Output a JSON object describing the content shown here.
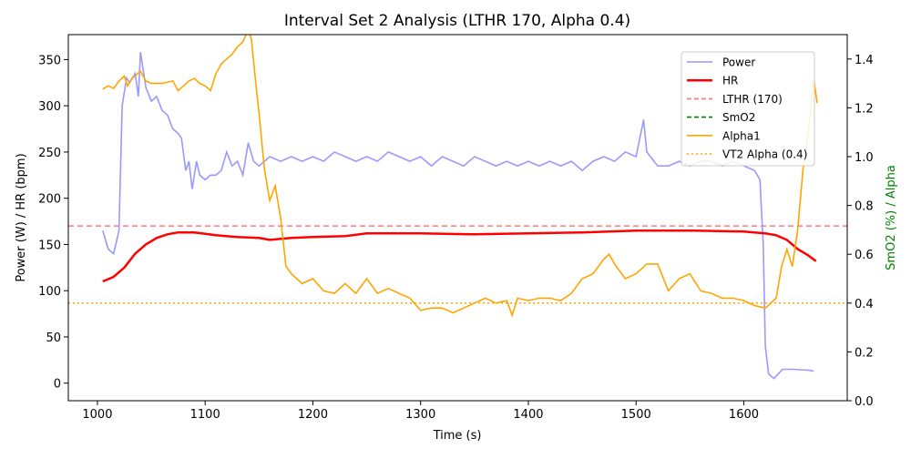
{
  "chart_data": {
    "type": "line",
    "title": "Interval Set 2 Analysis (LTHR 170, Alpha 0.4)",
    "xlabel": "Time (s)",
    "ylabel": "Power (W) / HR (bpm)",
    "y2label": "SmO2 (%) / Alpha",
    "xlim": [
      973,
      1696
    ],
    "ylim": [
      -19,
      377
    ],
    "y2lim": [
      0,
      1.5
    ],
    "xticks": [
      1000,
      1100,
      1200,
      1300,
      1400,
      1500,
      1600
    ],
    "yticks": [
      0,
      50,
      100,
      150,
      200,
      250,
      300,
      350
    ],
    "y2ticks": [
      0.0,
      0.2,
      0.4,
      0.6,
      0.8,
      1.0,
      1.2,
      1.4
    ],
    "grid": false,
    "legend_position": "top-right",
    "colors": {
      "power": "#9999ff",
      "hr": "#ff0000",
      "lthr": "#ff7777",
      "smo2": "#008000",
      "alpha1": "#ffa500",
      "vt2": "#ffa500",
      "y2label": "#008000"
    },
    "legend": [
      {
        "name": "Power",
        "style": "solid",
        "color": "#9999ff"
      },
      {
        "name": "HR",
        "style": "solid-thick",
        "color": "#ff0000"
      },
      {
        "name": "LTHR (170)",
        "style": "dashed",
        "color": "#ff7777"
      },
      {
        "name": "SmO2",
        "style": "dashed",
        "color": "#008000"
      },
      {
        "name": "Alpha1",
        "style": "solid",
        "color": "#ffa500"
      },
      {
        "name": "VT2 Alpha (0.4)",
        "style": "dotted",
        "color": "#ffa500"
      }
    ],
    "hlines": {
      "lthr": 170,
      "vt2_alpha": 0.4
    },
    "series": {
      "power": [
        [
          1005,
          165
        ],
        [
          1010,
          145
        ],
        [
          1015,
          140
        ],
        [
          1020,
          165
        ],
        [
          1023,
          300
        ],
        [
          1027,
          330
        ],
        [
          1030,
          325
        ],
        [
          1035,
          335
        ],
        [
          1038,
          310
        ],
        [
          1040,
          358
        ],
        [
          1045,
          320
        ],
        [
          1050,
          305
        ],
        [
          1055,
          310
        ],
        [
          1060,
          295
        ],
        [
          1065,
          290
        ],
        [
          1070,
          275
        ],
        [
          1075,
          270
        ],
        [
          1078,
          265
        ],
        [
          1082,
          230
        ],
        [
          1085,
          240
        ],
        [
          1088,
          210
        ],
        [
          1092,
          240
        ],
        [
          1095,
          225
        ],
        [
          1100,
          220
        ],
        [
          1105,
          225
        ],
        [
          1110,
          225
        ],
        [
          1115,
          230
        ],
        [
          1120,
          250
        ],
        [
          1125,
          235
        ],
        [
          1130,
          240
        ],
        [
          1135,
          225
        ],
        [
          1140,
          260
        ],
        [
          1145,
          240
        ],
        [
          1150,
          235
        ],
        [
          1155,
          240
        ],
        [
          1160,
          245
        ],
        [
          1170,
          240
        ],
        [
          1180,
          245
        ],
        [
          1190,
          240
        ],
        [
          1200,
          245
        ],
        [
          1210,
          240
        ],
        [
          1220,
          250
        ],
        [
          1230,
          245
        ],
        [
          1240,
          240
        ],
        [
          1250,
          245
        ],
        [
          1260,
          240
        ],
        [
          1270,
          250
        ],
        [
          1280,
          245
        ],
        [
          1290,
          240
        ],
        [
          1300,
          245
        ],
        [
          1310,
          235
        ],
        [
          1320,
          245
        ],
        [
          1330,
          240
        ],
        [
          1340,
          235
        ],
        [
          1350,
          245
        ],
        [
          1360,
          240
        ],
        [
          1370,
          235
        ],
        [
          1380,
          240
        ],
        [
          1390,
          235
        ],
        [
          1400,
          240
        ],
        [
          1410,
          235
        ],
        [
          1420,
          240
        ],
        [
          1430,
          235
        ],
        [
          1440,
          240
        ],
        [
          1450,
          230
        ],
        [
          1460,
          240
        ],
        [
          1470,
          245
        ],
        [
          1480,
          240
        ],
        [
          1490,
          250
        ],
        [
          1500,
          245
        ],
        [
          1507,
          285
        ],
        [
          1510,
          250
        ],
        [
          1520,
          235
        ],
        [
          1530,
          235
        ],
        [
          1540,
          240
        ],
        [
          1550,
          235
        ],
        [
          1560,
          240
        ],
        [
          1570,
          240
        ],
        [
          1580,
          235
        ],
        [
          1590,
          240
        ],
        [
          1600,
          235
        ],
        [
          1610,
          230
        ],
        [
          1615,
          220
        ],
        [
          1618,
          150
        ],
        [
          1620,
          40
        ],
        [
          1623,
          10
        ],
        [
          1628,
          5
        ],
        [
          1632,
          10
        ],
        [
          1636,
          15
        ],
        [
          1645,
          15
        ],
        [
          1660,
          14
        ],
        [
          1665,
          13
        ]
      ],
      "hr": [
        [
          1005,
          110
        ],
        [
          1015,
          115
        ],
        [
          1025,
          125
        ],
        [
          1035,
          140
        ],
        [
          1045,
          150
        ],
        [
          1055,
          157
        ],
        [
          1065,
          161
        ],
        [
          1075,
          163
        ],
        [
          1090,
          163
        ],
        [
          1110,
          160
        ],
        [
          1130,
          158
        ],
        [
          1150,
          157
        ],
        [
          1160,
          155
        ],
        [
          1180,
          157
        ],
        [
          1200,
          158
        ],
        [
          1230,
          159
        ],
        [
          1250,
          162
        ],
        [
          1300,
          162
        ],
        [
          1350,
          161
        ],
        [
          1400,
          162
        ],
        [
          1450,
          163
        ],
        [
          1500,
          165
        ],
        [
          1550,
          165
        ],
        [
          1600,
          164
        ],
        [
          1620,
          162
        ],
        [
          1630,
          160
        ],
        [
          1640,
          155
        ],
        [
          1650,
          145
        ],
        [
          1660,
          138
        ],
        [
          1667,
          132
        ]
      ],
      "alpha1": [
        [
          1005,
          1.277
        ],
        [
          1010,
          1.29
        ],
        [
          1015,
          1.28
        ],
        [
          1020,
          1.31
        ],
        [
          1025,
          1.33
        ],
        [
          1028,
          1.29
        ],
        [
          1032,
          1.32
        ],
        [
          1040,
          1.35
        ],
        [
          1045,
          1.31
        ],
        [
          1050,
          1.3
        ],
        [
          1060,
          1.3
        ],
        [
          1070,
          1.31
        ],
        [
          1075,
          1.27
        ],
        [
          1080,
          1.29
        ],
        [
          1085,
          1.31
        ],
        [
          1090,
          1.32
        ],
        [
          1095,
          1.3
        ],
        [
          1100,
          1.29
        ],
        [
          1105,
          1.27
        ],
        [
          1110,
          1.34
        ],
        [
          1115,
          1.38
        ],
        [
          1125,
          1.42
        ],
        [
          1130,
          1.45
        ],
        [
          1135,
          1.47
        ],
        [
          1140,
          1.52
        ],
        [
          1143,
          1.48
        ],
        [
          1147,
          1.3
        ],
        [
          1150,
          1.18
        ],
        [
          1155,
          0.95
        ],
        [
          1160,
          0.82
        ],
        [
          1165,
          0.88
        ],
        [
          1170,
          0.75
        ],
        [
          1175,
          0.55
        ],
        [
          1180,
          0.52
        ],
        [
          1185,
          0.5
        ],
        [
          1190,
          0.48
        ],
        [
          1200,
          0.5
        ],
        [
          1210,
          0.45
        ],
        [
          1220,
          0.44
        ],
        [
          1230,
          0.48
        ],
        [
          1240,
          0.44
        ],
        [
          1250,
          0.5
        ],
        [
          1260,
          0.44
        ],
        [
          1270,
          0.46
        ],
        [
          1280,
          0.44
        ],
        [
          1290,
          0.42
        ],
        [
          1300,
          0.37
        ],
        [
          1310,
          0.38
        ],
        [
          1320,
          0.38
        ],
        [
          1330,
          0.36
        ],
        [
          1340,
          0.38
        ],
        [
          1350,
          0.4
        ],
        [
          1360,
          0.42
        ],
        [
          1370,
          0.4
        ],
        [
          1380,
          0.41
        ],
        [
          1385,
          0.35
        ],
        [
          1390,
          0.42
        ],
        [
          1400,
          0.41
        ],
        [
          1410,
          0.42
        ],
        [
          1420,
          0.42
        ],
        [
          1430,
          0.41
        ],
        [
          1440,
          0.44
        ],
        [
          1450,
          0.5
        ],
        [
          1460,
          0.52
        ],
        [
          1470,
          0.58
        ],
        [
          1475,
          0.6
        ],
        [
          1480,
          0.56
        ],
        [
          1490,
          0.5
        ],
        [
          1500,
          0.52
        ],
        [
          1510,
          0.56
        ],
        [
          1520,
          0.56
        ],
        [
          1530,
          0.45
        ],
        [
          1540,
          0.5
        ],
        [
          1550,
          0.52
        ],
        [
          1560,
          0.45
        ],
        [
          1570,
          0.44
        ],
        [
          1580,
          0.42
        ],
        [
          1590,
          0.42
        ],
        [
          1600,
          0.41
        ],
        [
          1610,
          0.39
        ],
        [
          1620,
          0.38
        ],
        [
          1630,
          0.42
        ],
        [
          1635,
          0.55
        ],
        [
          1640,
          0.62
        ],
        [
          1645,
          0.55
        ],
        [
          1650,
          0.7
        ],
        [
          1655,
          0.95
        ],
        [
          1660,
          1.1
        ],
        [
          1665,
          1.32
        ],
        [
          1668,
          1.22
        ]
      ]
    }
  }
}
